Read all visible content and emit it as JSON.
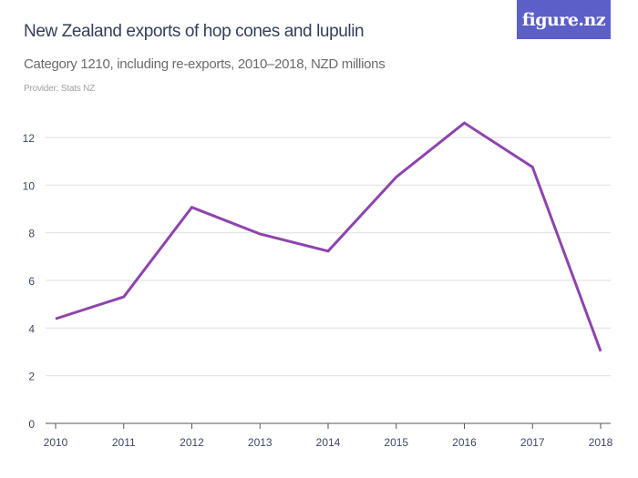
{
  "header": {
    "logo_text": "figure.nz",
    "logo_color": "#5b5fc7"
  },
  "chart_data": {
    "type": "line",
    "title": "New Zealand exports of hop cones and lupulin",
    "subtitle": "Category 1210, including re-exports, 2010–2018, NZD millions",
    "provider": "Provider: Stats NZ",
    "xlabel": "",
    "ylabel": "",
    "x": [
      "2010",
      "2011",
      "2012",
      "2013",
      "2014",
      "2015",
      "2016",
      "2017",
      "2018"
    ],
    "series": [
      {
        "values": [
          4.39,
          5.31,
          9.07,
          7.95,
          7.23,
          10.34,
          12.61,
          10.76,
          3.03
        ],
        "color": "#8e44ad"
      }
    ],
    "ylim": [
      0,
      12
    ],
    "yticks": [
      "0",
      "2",
      "4",
      "6",
      "8",
      "10",
      "12"
    ],
    "grid": true,
    "legend": "none"
  }
}
